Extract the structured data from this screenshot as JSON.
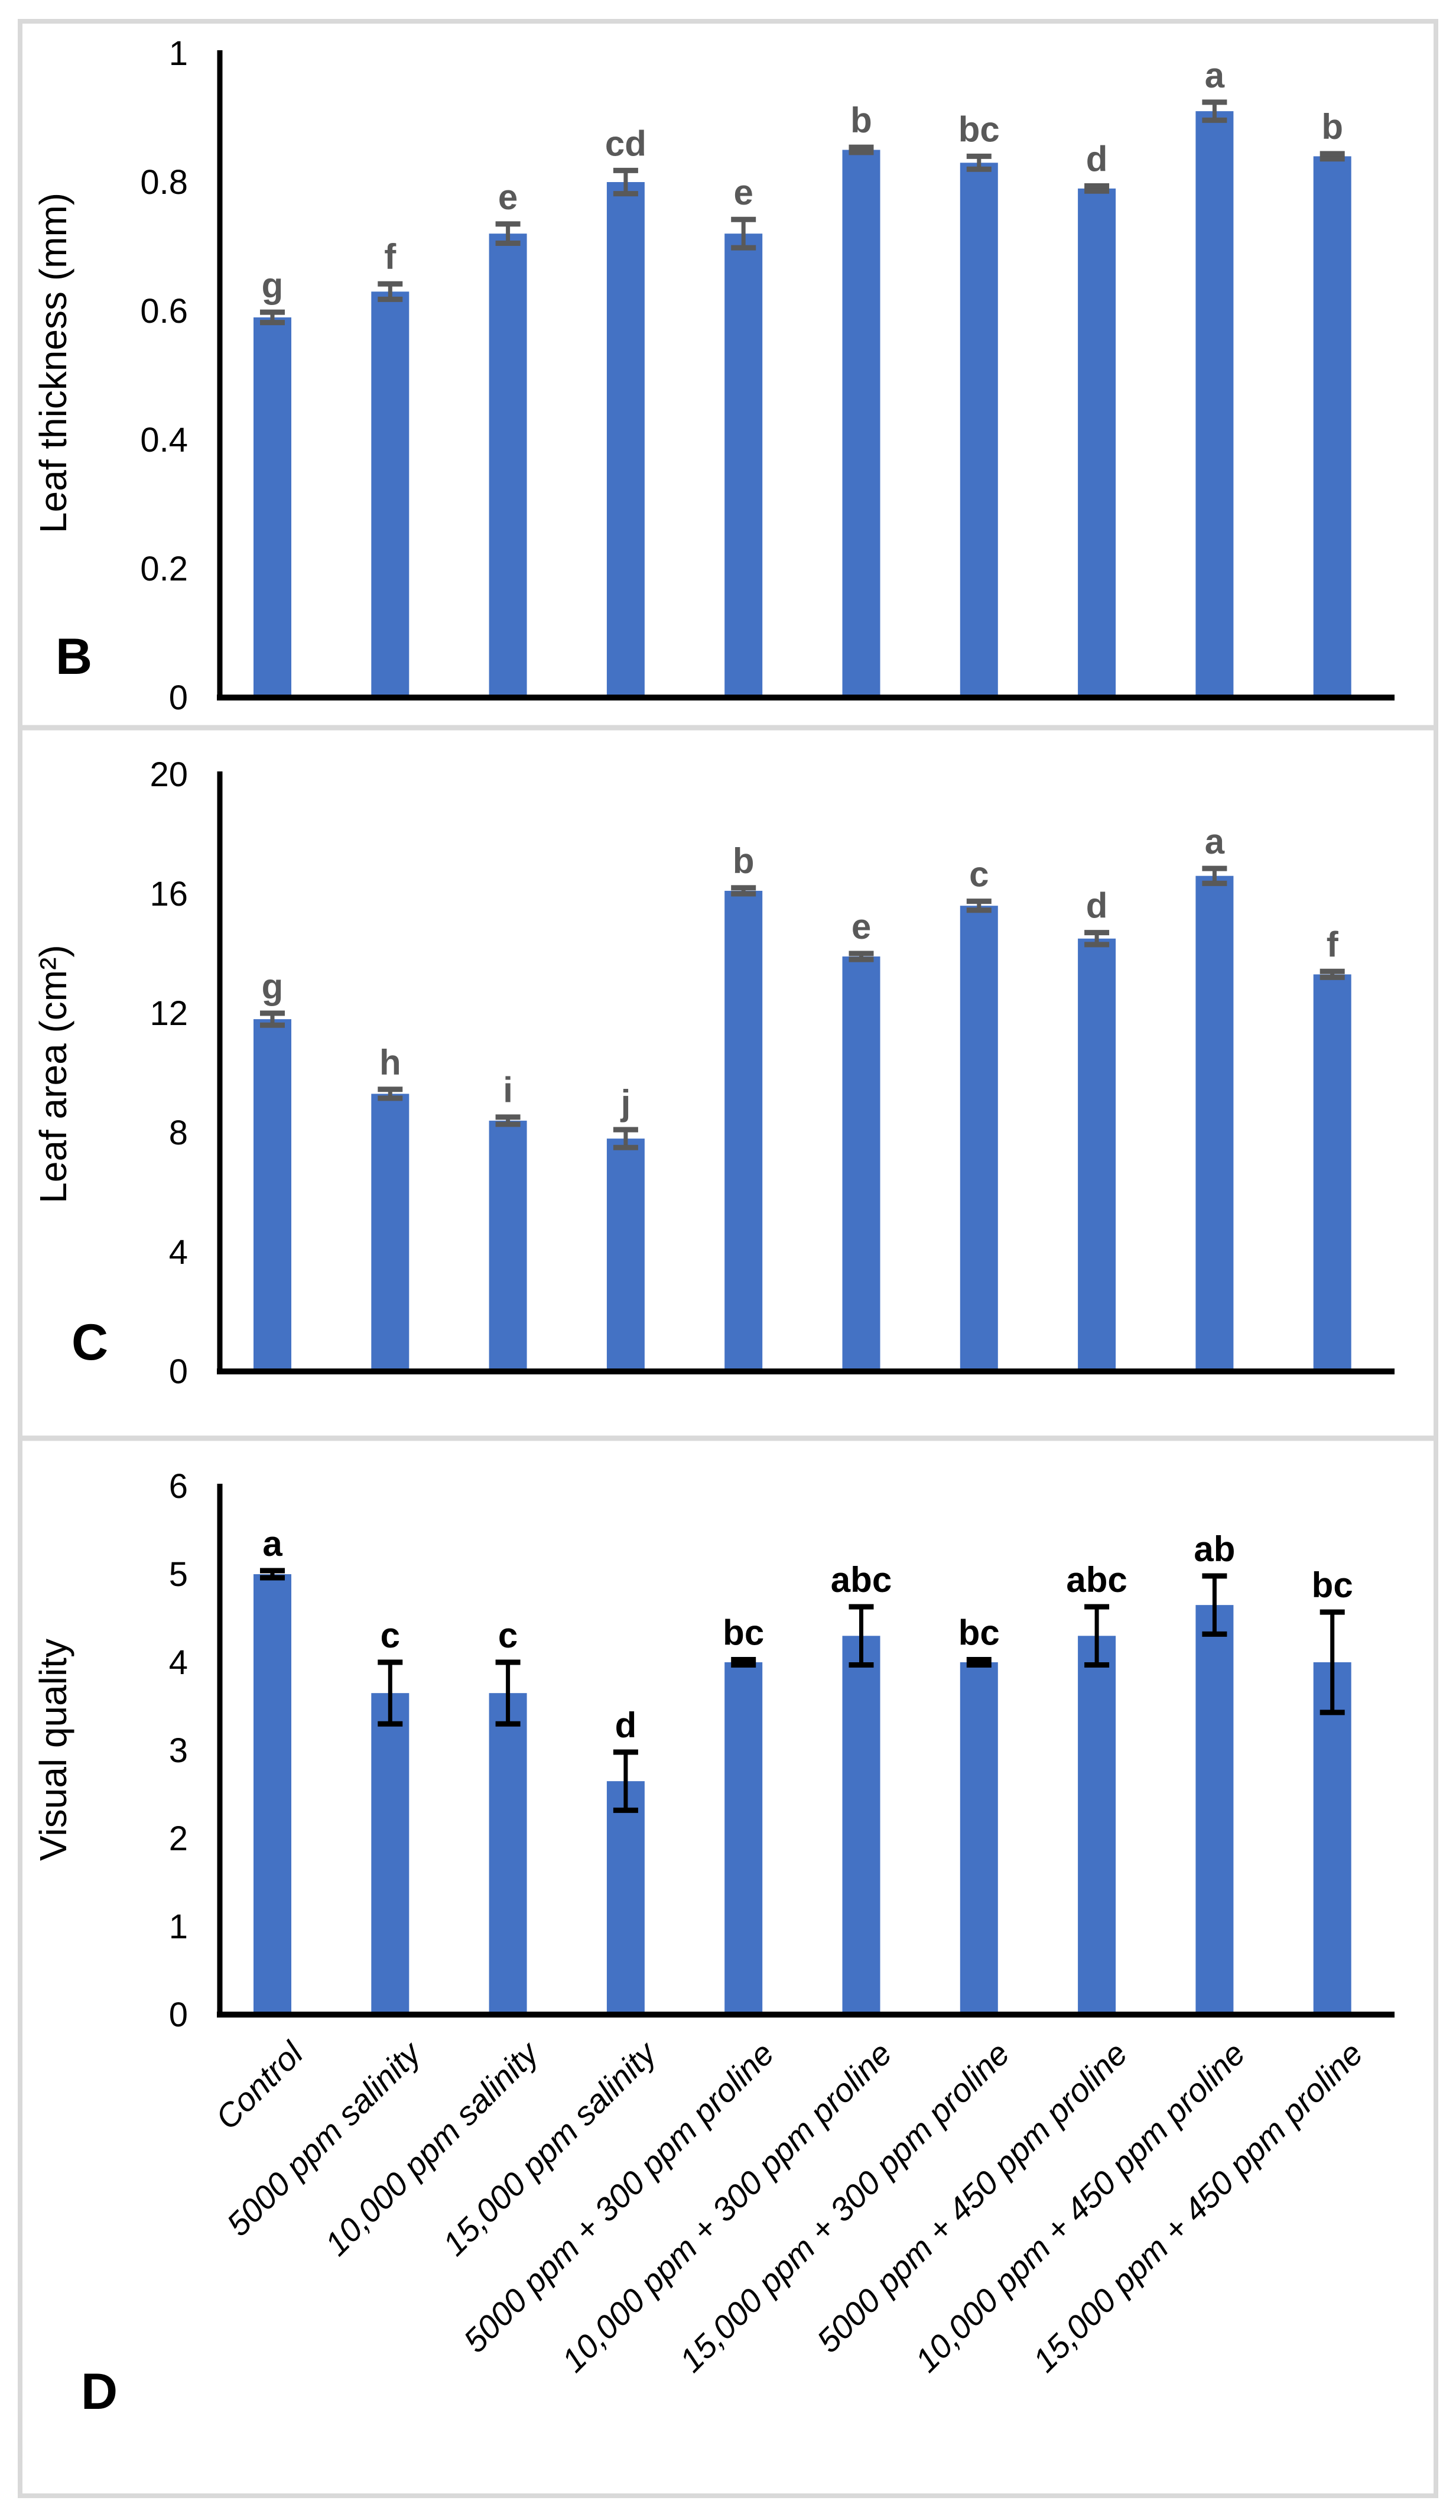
{
  "figure": {
    "bar_color": "#4472C4",
    "grey_annotation_color": "#595959",
    "black_annotation_color": "#000000",
    "border_color": "#D9D9D9",
    "background": "#FFFFFF",
    "panel_letters": [
      "B",
      "C",
      "D"
    ],
    "categories": [
      "Control",
      "5000 ppm salinity",
      "10,000 ppm salinity",
      "15,000 ppm salinity",
      "5000 ppm + 300 ppm proline",
      "10,000 ppm + 300 ppm proline",
      "15,000 ppm + 300 ppm proline",
      "5000 ppm + 450 ppm proline",
      "10,000 ppm + 450 ppm proline",
      "15,000 ppm + 450 ppm proline"
    ]
  },
  "chart_data": [
    {
      "type": "bar",
      "panel": "B",
      "panel_label": "B",
      "title": "",
      "xlabel": "",
      "ylabel": "Leaf thickness (mm)",
      "ylim": [
        0,
        1
      ],
      "yticks": [
        0,
        0.2,
        0.4,
        0.6,
        0.8,
        1
      ],
      "ytick_labels": [
        "0",
        "0.2",
        "0.4",
        "0.6",
        "0.8",
        "1"
      ],
      "grid": false,
      "legend": false,
      "values": [
        0.59,
        0.63,
        0.72,
        0.8,
        0.72,
        0.85,
        0.83,
        0.79,
        0.91,
        0.84
      ],
      "errors": [
        0.008,
        0.012,
        0.015,
        0.018,
        0.022,
        0.004,
        0.01,
        0.004,
        0.014,
        0.004
      ],
      "letters": [
        "g",
        "f",
        "e",
        "cd",
        "e",
        "b",
        "bc",
        "d",
        "a",
        "b"
      ],
      "letter_color": "#595959",
      "error_color": "#595959",
      "show_categories": false
    },
    {
      "type": "bar",
      "panel": "C",
      "panel_label": "C",
      "title": "",
      "xlabel": "",
      "ylabel": "Leaf area (cm²)",
      "ylim": [
        0,
        20
      ],
      "yticks": [
        0,
        4,
        8,
        12,
        16,
        20
      ],
      "ytick_labels": [
        "0",
        "4",
        "8",
        "12",
        "16",
        "20"
      ],
      "grid": false,
      "legend": false,
      "values": [
        11.8,
        9.3,
        8.4,
        7.8,
        16.1,
        13.9,
        15.6,
        14.5,
        16.6,
        13.3
      ],
      "errors": [
        0.2,
        0.15,
        0.12,
        0.3,
        0.1,
        0.1,
        0.15,
        0.2,
        0.25,
        0.1
      ],
      "letters": [
        "g",
        "h",
        "i",
        "j",
        "b",
        "e",
        "c",
        "d",
        "a",
        "f"
      ],
      "letter_color": "#595959",
      "error_color": "#595959",
      "show_categories": false
    },
    {
      "type": "bar",
      "panel": "D",
      "panel_label": "D",
      "title": "",
      "xlabel": "",
      "ylabel": "Visual quality",
      "ylim": [
        0,
        6
      ],
      "yticks": [
        0,
        1,
        2,
        3,
        4,
        5,
        6
      ],
      "ytick_labels": [
        "0",
        "1",
        "2",
        "3",
        "4",
        "5",
        "6"
      ],
      "grid": false,
      "legend": false,
      "values": [
        5.0,
        3.65,
        3.65,
        2.65,
        4.0,
        4.3,
        4.0,
        4.3,
        4.65,
        4.0
      ],
      "errors": [
        0.04,
        0.35,
        0.35,
        0.33,
        0.03,
        0.33,
        0.03,
        0.33,
        0.33,
        0.57
      ],
      "letters": [
        "a",
        "c",
        "c",
        "d",
        "bc",
        "abc",
        "bc",
        "abc",
        "ab",
        "bc"
      ],
      "letter_color": "#000000",
      "error_color": "#000000",
      "show_categories": true
    }
  ]
}
